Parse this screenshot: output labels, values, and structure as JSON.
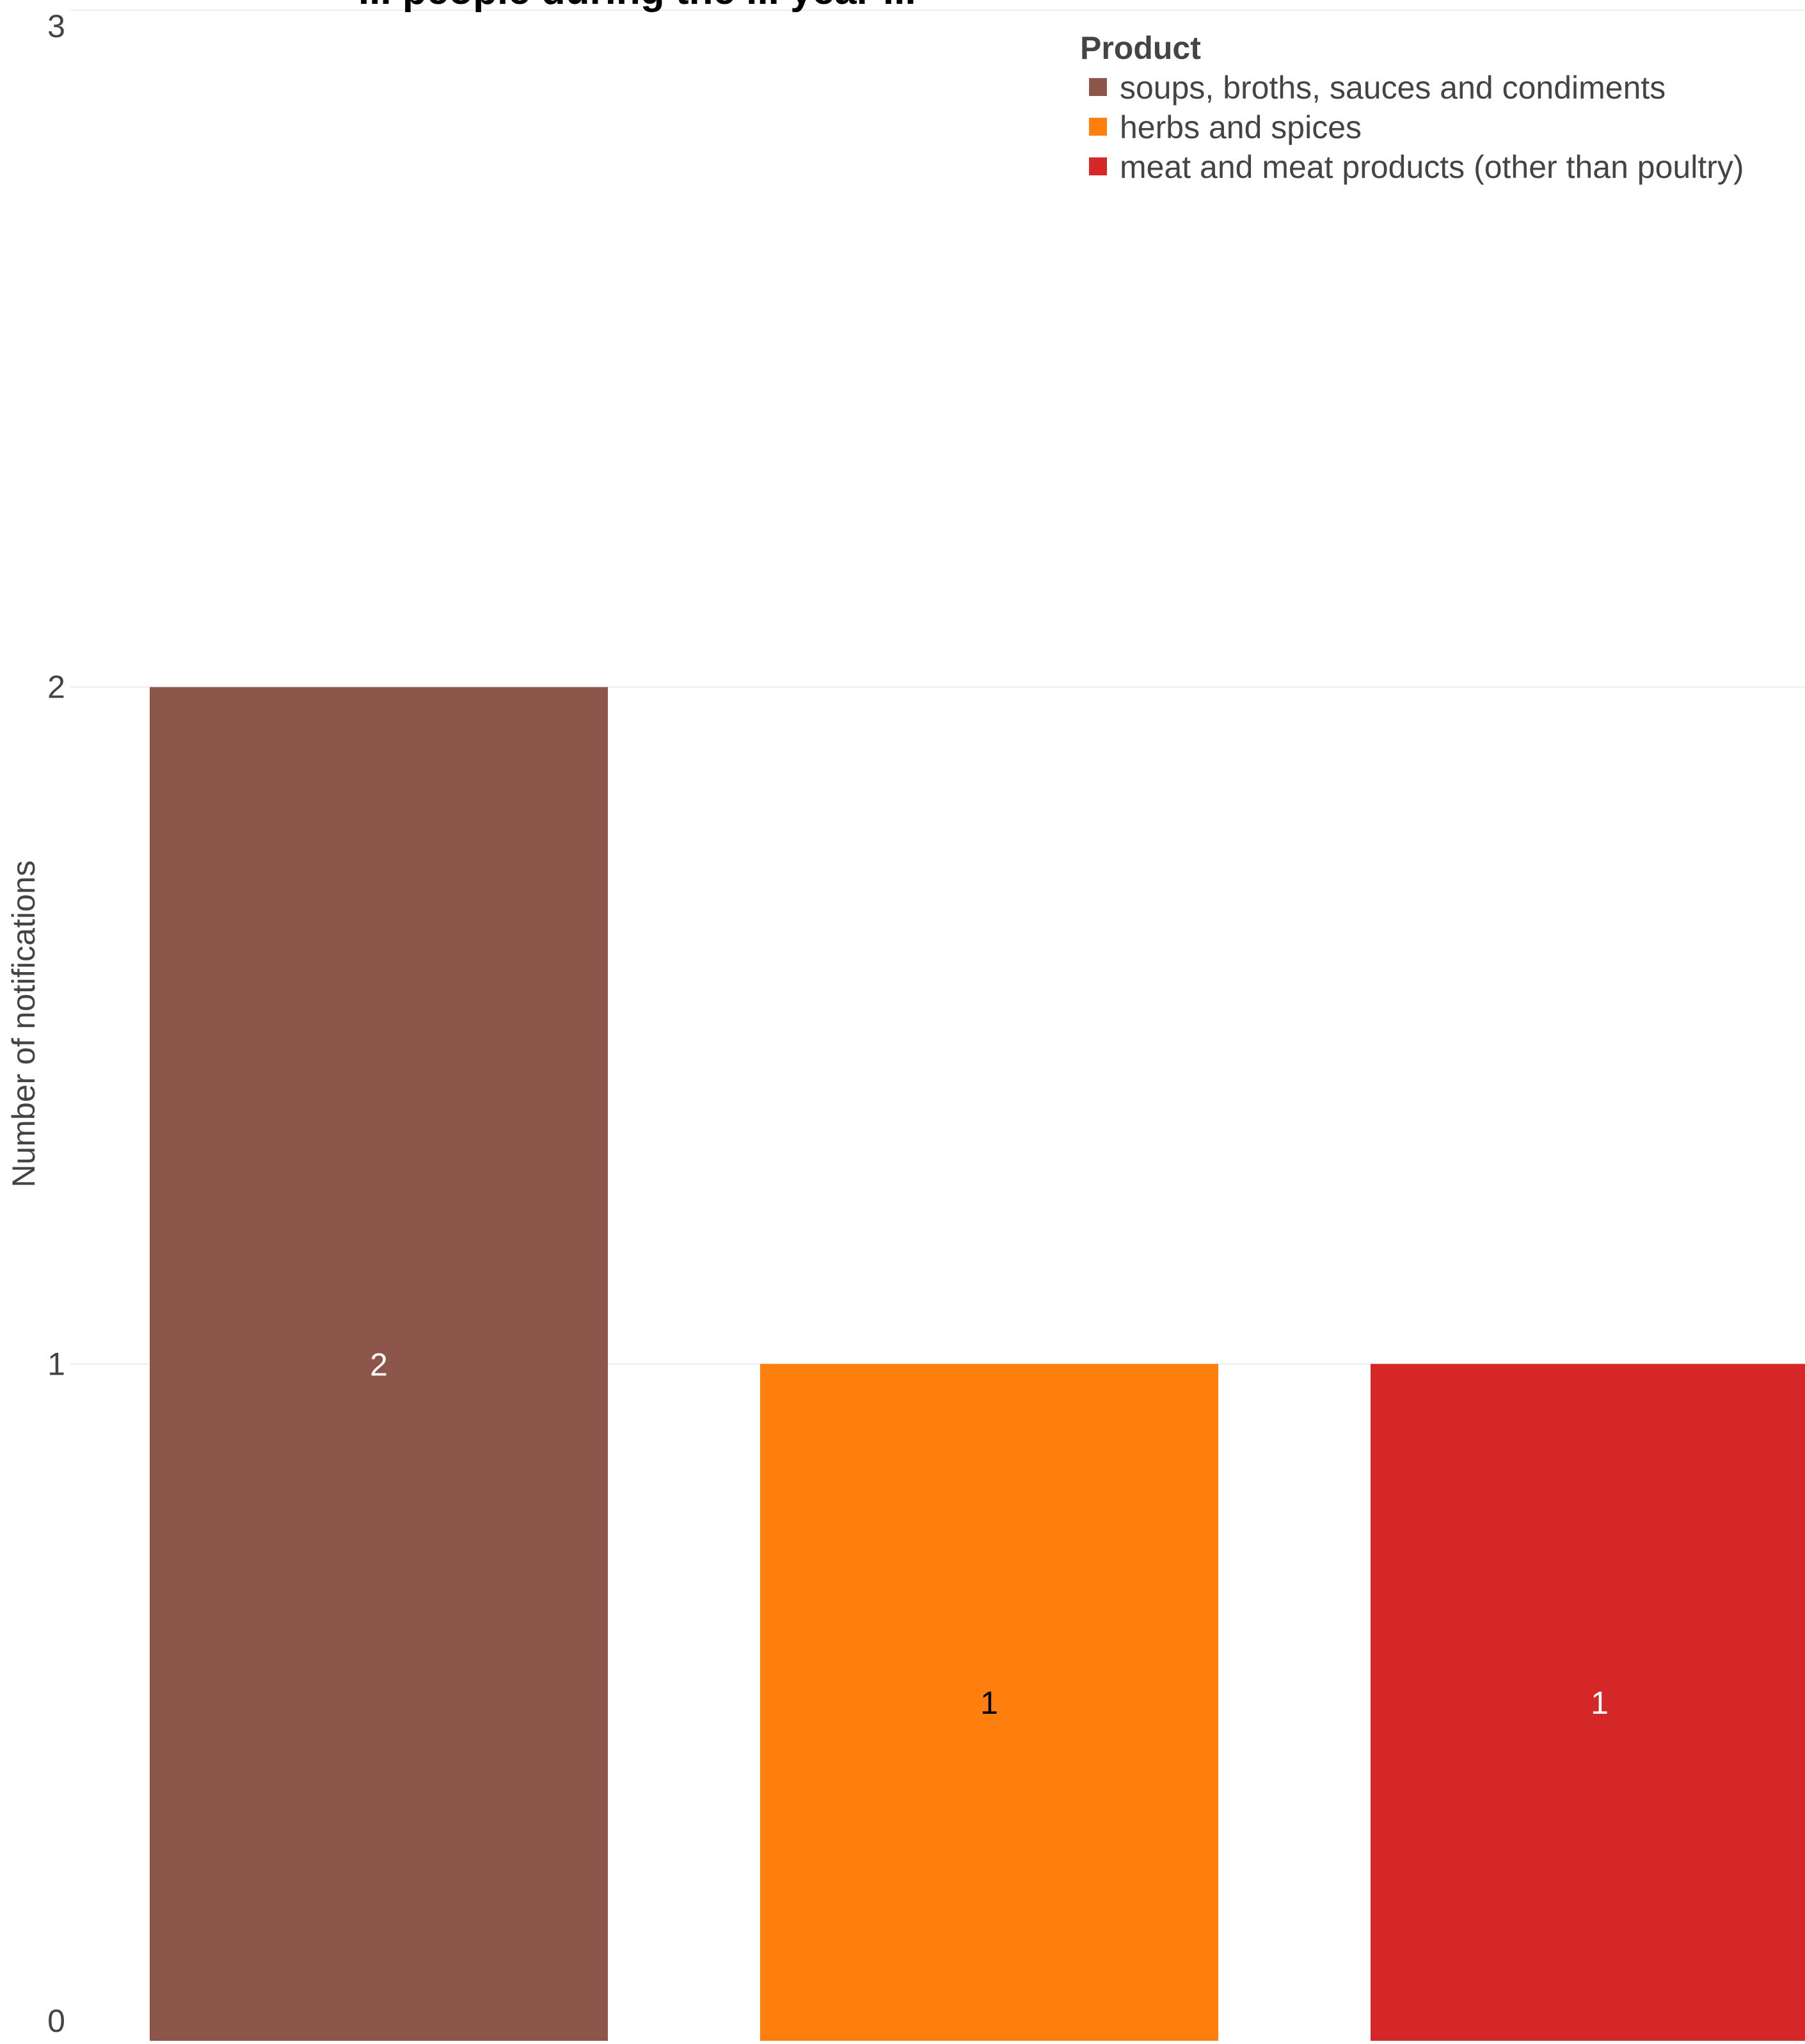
{
  "chart_data": {
    "type": "bar",
    "title": "... people during the ... year ...",
    "xlabel": "",
    "ylabel": "Number of notifications",
    "ylim": [
      0,
      3
    ],
    "yticks": [
      0,
      1,
      2,
      3
    ],
    "grid": true,
    "categories": [
      "soups, broths, sauces and condiments",
      "herbs and spices",
      "meat and meat products (other than poultry)"
    ],
    "values": [
      2,
      1,
      1
    ],
    "colors": [
      "#8c564b",
      "#ff7f0e",
      "#d62728"
    ],
    "label_colors": [
      "#ffffff",
      "#000000",
      "#ffffff"
    ],
    "legend": {
      "title": "Product",
      "placement": "top-right",
      "items": [
        {
          "label": "soups, broths, sauces and condiments",
          "color": "#8c564b"
        },
        {
          "label": "herbs and spices",
          "color": "#ff7f0e"
        },
        {
          "label": "meat and meat products (other than poultry)",
          "color": "#d62728"
        }
      ]
    }
  }
}
